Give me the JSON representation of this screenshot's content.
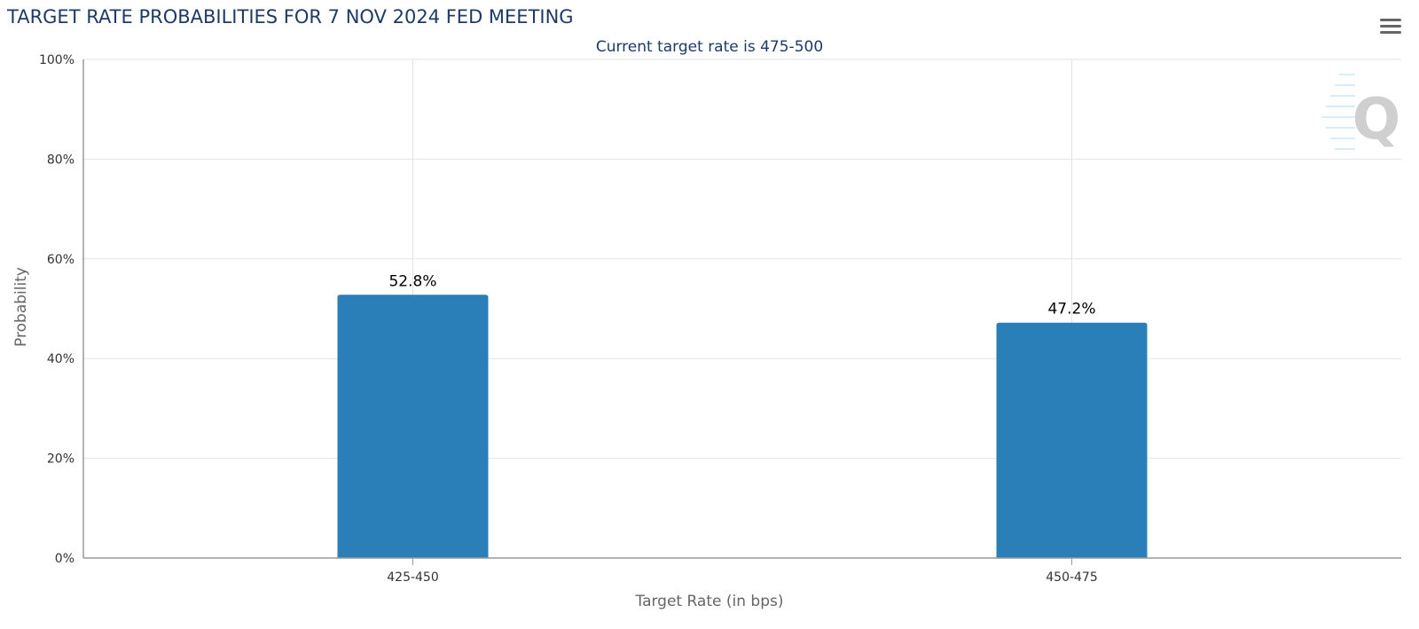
{
  "chart_data": {
    "type": "bar",
    "title": "TARGET RATE PROBABILITIES FOR 7 NOV 2024 FED MEETING",
    "subtitle": "Current target rate is 475-500",
    "xlabel": "Target Rate (in bps)",
    "ylabel": "Probability",
    "categories": [
      "425-450",
      "450-475"
    ],
    "values": [
      52.8,
      47.2
    ],
    "data_labels": [
      "52.8%",
      "47.2%"
    ],
    "ylim": [
      0,
      100
    ],
    "yticks": [
      0,
      20,
      40,
      60,
      80,
      100
    ],
    "ytick_labels": [
      "0%",
      "20%",
      "40%",
      "60%",
      "80%",
      "100%"
    ],
    "grid": true,
    "legend": "none",
    "colors": {
      "bar": "#2a7fb8",
      "title": "#1f3a66",
      "grid": "#e3e3e3",
      "axis": "#999999",
      "tick_text": "#333333",
      "axis_title": "#666666"
    }
  },
  "toolbar": {
    "menu_icon": "hamburger-menu-icon"
  },
  "watermark": {
    "icon": "q-logo-icon",
    "text": "Q"
  }
}
